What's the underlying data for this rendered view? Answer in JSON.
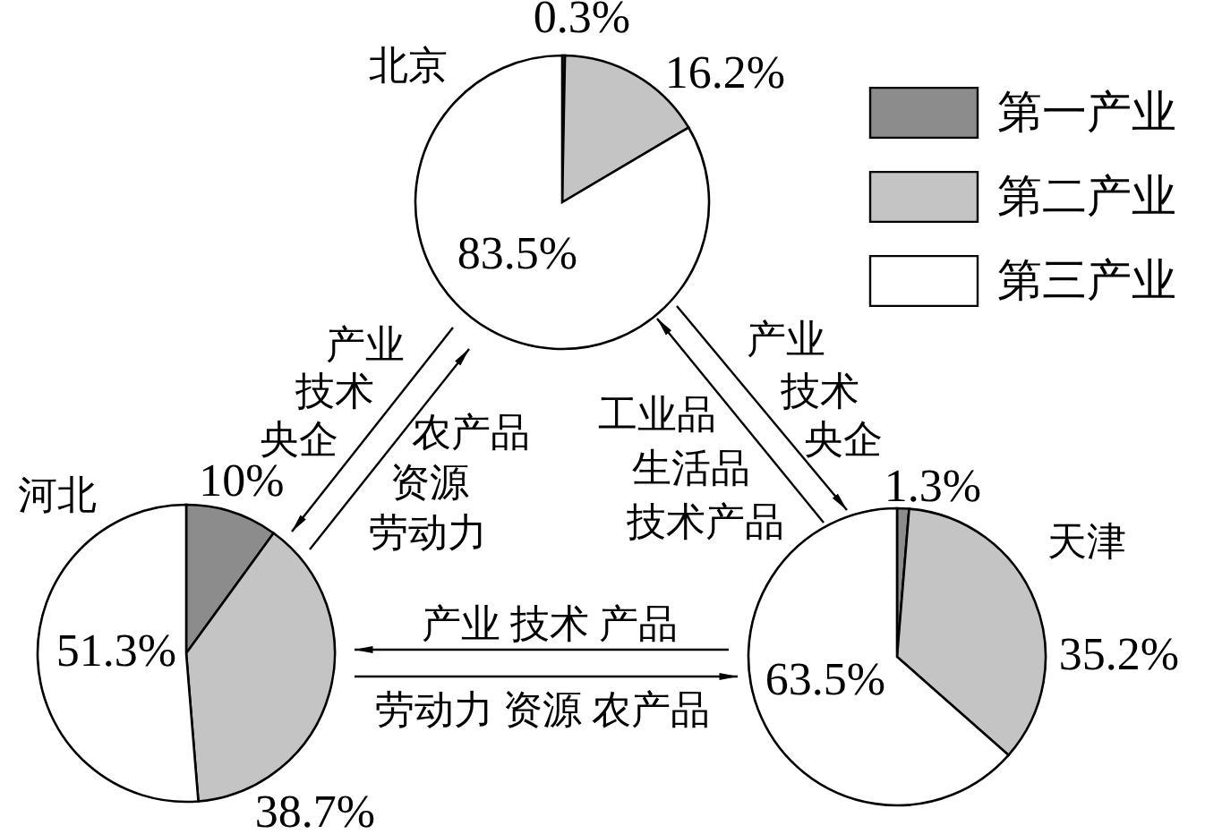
{
  "chart_data": {
    "type": "pie",
    "categories": [
      "第一产业",
      "第二产业",
      "第三产业"
    ],
    "colors": [
      "#8c8c8c",
      "#c4c4c4",
      "#ffffff"
    ],
    "legend": "top right",
    "series": [
      {
        "name": "北京",
        "values": [
          0.3,
          16.2,
          83.5
        ],
        "value_labels": [
          "0.3%",
          "16.2%",
          "83.5%"
        ]
      },
      {
        "name": "河北",
        "values": [
          10,
          38.7,
          51.3
        ],
        "value_labels": [
          "10%",
          "38.7%",
          "51.3%"
        ]
      },
      {
        "name": "天津",
        "values": [
          1.3,
          35.2,
          63.5
        ],
        "value_labels": [
          "1.3%",
          "35.2%",
          "63.5%"
        ]
      }
    ],
    "annotations": [
      "产业",
      "技术",
      "央企",
      "农产品",
      "资源",
      "劳动力",
      "产业",
      "技术",
      "央企",
      "工业品",
      "生活品",
      "技术产品",
      "产业 技术 产品",
      "劳动力 资源 农产品"
    ]
  }
}
